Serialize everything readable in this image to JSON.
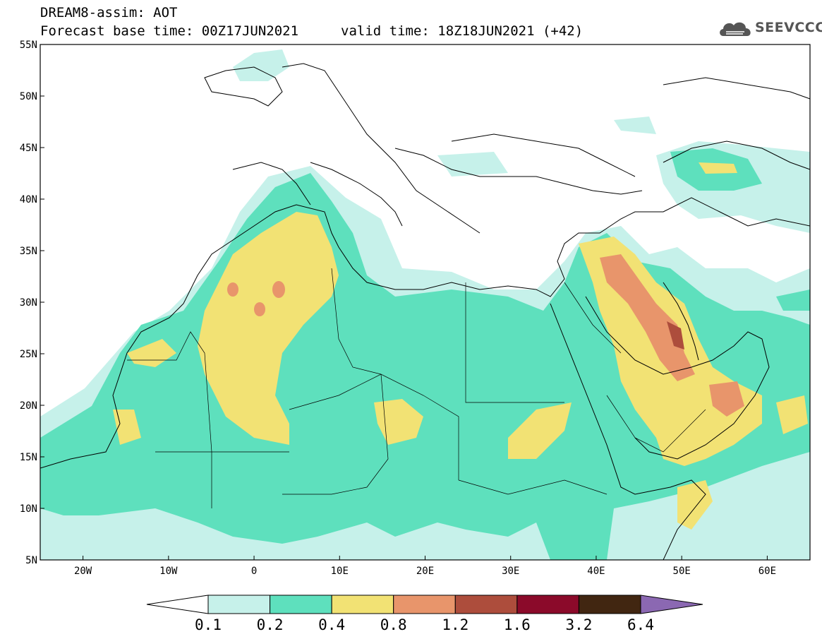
{
  "header": {
    "title_line1": "DREAM8-assim: AOT",
    "title_line2": "Forecast base time: 00Z17JUN2021",
    "valid_time": "valid time: 18Z18JUN2021 (+42)",
    "logo_text": "SEEVCCC"
  },
  "map": {
    "extent": {
      "lon_min": -25,
      "lon_max": 65,
      "lat_min": 5,
      "lat_max": 55
    },
    "lat_ticks": [
      {
        "value": 5,
        "label": "5N"
      },
      {
        "value": 10,
        "label": "10N"
      },
      {
        "value": 15,
        "label": "15N"
      },
      {
        "value": 20,
        "label": "20N"
      },
      {
        "value": 25,
        "label": "25N"
      },
      {
        "value": 30,
        "label": "30N"
      },
      {
        "value": 35,
        "label": "35N"
      },
      {
        "value": 40,
        "label": "40N"
      },
      {
        "value": 45,
        "label": "45N"
      },
      {
        "value": 50,
        "label": "50N"
      },
      {
        "value": 55,
        "label": "55N"
      }
    ],
    "lon_ticks": [
      {
        "value": -20,
        "label": "20W"
      },
      {
        "value": -10,
        "label": "10W"
      },
      {
        "value": 0,
        "label": "0"
      },
      {
        "value": 10,
        "label": "10E"
      },
      {
        "value": 20,
        "label": "20E"
      },
      {
        "value": 30,
        "label": "30E"
      },
      {
        "value": 40,
        "label": "40E"
      },
      {
        "value": 50,
        "label": "50E"
      },
      {
        "value": 60,
        "label": "60E"
      }
    ]
  },
  "colorbar": {
    "bins": [
      {
        "color": "#c6f1ea"
      },
      {
        "color": "#5ee0bd"
      },
      {
        "color": "#f2e274"
      },
      {
        "color": "#e8956b"
      },
      {
        "color": "#ad4d3c"
      },
      {
        "color": "#8b0a2a"
      },
      {
        "color": "#412611"
      }
    ],
    "over_color": "#8b68b2",
    "under_color": "#ffffff",
    "labels": [
      "0.1",
      "0.2",
      "0.4",
      "0.8",
      "1.2",
      "1.6",
      "3.2",
      "6.4"
    ]
  }
}
